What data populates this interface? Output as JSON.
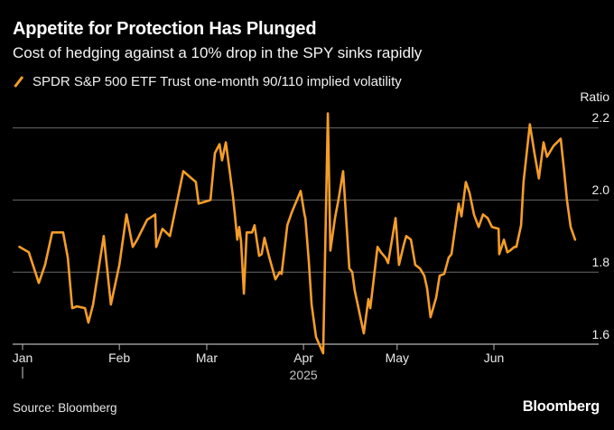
{
  "header": {
    "title": "Appetite for Protection Has Plunged",
    "subtitle": "Cost of hedging against a 10% drop in the SPY sinks rapidly"
  },
  "legend": {
    "label": "SPDR S&P 500 ETF Trust one-month 90/110 implied volatility"
  },
  "footer": {
    "source": "Source: Bloomberg",
    "logo": "Bloomberg"
  },
  "colors": {
    "background": "#000000",
    "line": "#F49D28",
    "gridline": "#686868",
    "axis": "#b5b5b5",
    "title_text": "#ffffff",
    "tick_text": "#ededed",
    "year_text": "#c6c6c6"
  },
  "chart_data": {
    "type": "line",
    "title": "Appetite for Protection Has Plunged",
    "subtitle": "Cost of hedging against a 10% drop in the SPY sinks rapidly",
    "ylabel": "Ratio",
    "year_label": "2025",
    "grid": "horizontal",
    "legend_position": "top-left",
    "y_ticks": [
      1.6,
      1.8,
      2.0,
      2.2
    ],
    "ylim": [
      1.55,
      2.28
    ],
    "x_unit": "day_of_year_2025",
    "x_ticks": [
      {
        "label": "Jan",
        "day": 1
      },
      {
        "label": "Feb",
        "day": 32
      },
      {
        "label": "Mar",
        "day": 60
      },
      {
        "label": "Apr",
        "day": 91
      },
      {
        "label": "May",
        "day": 121
      },
      {
        "label": "Jun",
        "day": 152
      }
    ],
    "series": [
      {
        "name": "SPDR S&P 500 ETF Trust one-month 90/110 implied volatility",
        "color": "#F49D28",
        "x_day_of_year": [
          0,
          3,
          6.2,
          8.2,
          10.5,
          14,
          15.5,
          16.9,
          18.4,
          21,
          22.1,
          23.6,
          27,
          29.3,
          32,
          34.3,
          36.3,
          37.7,
          40.9,
          43.5,
          43.8,
          45.8,
          48.2,
          52.5,
          54.5,
          56.5,
          57.4,
          59.4,
          61.2,
          62.6,
          64.1,
          64.9,
          66.1,
          67.5,
          68.4,
          69,
          69.8,
          70.4,
          71,
          71.9,
          72.8,
          74.5,
          75.3,
          76.8,
          77.6,
          78.5,
          79.9,
          82,
          83.4,
          84,
          85.8,
          87.2,
          90.1,
          91.3,
          91.6,
          92.7,
          93.6,
          95,
          97.3,
          98.8,
          99.6,
          101.1,
          102.2,
          103.7,
          105.7,
          106.6,
          107.4,
          110.3,
          111.8,
          112.4,
          114.7,
          115.8,
          117.3,
          118.1,
          120.5,
          121.6,
          123.1,
          123.9,
          125.4,
          126.8,
          128.3,
          129.7,
          130.6,
          131.7,
          133.5,
          134.6,
          136.1,
          137.5,
          138.4,
          140.7,
          141.6,
          143,
          144.2,
          145.6,
          147.1,
          148.5,
          150,
          151.4,
          153.5,
          153.7,
          155.2,
          156.3,
          157.2,
          158.6,
          159.2,
          160.7,
          161.5,
          163.5,
          165,
          166.4,
          167.9,
          169,
          171.1,
          173.4,
          174.5,
          175.4,
          176.6,
          178
        ],
        "values": [
          1.87,
          1.855,
          1.77,
          1.82,
          1.91,
          1.91,
          1.84,
          1.7,
          1.705,
          1.7,
          1.66,
          1.71,
          1.9,
          1.71,
          1.82,
          1.96,
          1.87,
          1.89,
          1.945,
          1.96,
          1.87,
          1.92,
          1.9,
          2.08,
          2.065,
          2.05,
          1.99,
          1.995,
          2.0,
          2.13,
          2.155,
          2.11,
          2.16,
          2.07,
          2.01,
          1.96,
          1.89,
          1.925,
          1.885,
          1.74,
          1.91,
          1.91,
          1.93,
          1.845,
          1.85,
          1.895,
          1.845,
          1.78,
          1.8,
          1.795,
          1.93,
          1.965,
          2.025,
          1.96,
          1.95,
          1.83,
          1.71,
          1.62,
          1.575,
          2.24,
          1.86,
          1.95,
          2.0,
          2.08,
          1.81,
          1.8,
          1.75,
          1.63,
          1.725,
          1.7,
          1.87,
          1.855,
          1.84,
          1.825,
          1.95,
          1.82,
          1.875,
          1.9,
          1.89,
          1.82,
          1.81,
          1.79,
          1.755,
          1.675,
          1.73,
          1.79,
          1.795,
          1.84,
          1.85,
          1.99,
          1.955,
          2.05,
          2.02,
          1.96,
          1.925,
          1.96,
          1.95,
          1.925,
          1.92,
          1.85,
          1.89,
          1.855,
          1.86,
          1.87,
          1.87,
          1.93,
          2.05,
          2.21,
          2.13,
          2.06,
          2.16,
          2.12,
          2.15,
          2.17,
          2.08,
          2.0,
          1.925,
          1.89
        ]
      }
    ]
  }
}
